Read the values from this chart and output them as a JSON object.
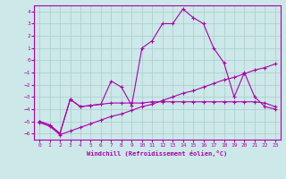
{
  "title": "",
  "xlabel": "Windchill (Refroidissement éolien,°C)",
  "ylabel": "",
  "xlim": [
    -0.5,
    23.5
  ],
  "ylim": [
    -6.5,
    4.5
  ],
  "xticks": [
    0,
    1,
    2,
    3,
    4,
    5,
    6,
    7,
    8,
    9,
    10,
    11,
    12,
    13,
    14,
    15,
    16,
    17,
    18,
    19,
    20,
    21,
    22,
    23
  ],
  "yticks": [
    -6,
    -5,
    -4,
    -3,
    -2,
    -1,
    0,
    1,
    2,
    3,
    4
  ],
  "bg_color": "#cce8e8",
  "grid_color": "#aacccc",
  "line_color": "#aa00aa",
  "line1_x": [
    0,
    1,
    2,
    3,
    4,
    5,
    6,
    7,
    8,
    9,
    10,
    11,
    12,
    13,
    14,
    15,
    16,
    17,
    18,
    19,
    20,
    21,
    22,
    23
  ],
  "line1_y": [
    -5.0,
    -5.3,
    -6.0,
    -3.2,
    -3.8,
    -3.7,
    -3.6,
    -3.5,
    -3.5,
    -3.5,
    -3.5,
    -3.4,
    -3.4,
    -3.4,
    -3.4,
    -3.4,
    -3.4,
    -3.4,
    -3.4,
    -3.4,
    -3.4,
    -3.4,
    -3.5,
    -3.8
  ],
  "line2_x": [
    0,
    1,
    2,
    3,
    4,
    5,
    6,
    7,
    8,
    9,
    10,
    11,
    12,
    13,
    14,
    15,
    16,
    17,
    18,
    19,
    20,
    21,
    22,
    23
  ],
  "line2_y": [
    -5.0,
    -5.3,
    -6.0,
    -3.2,
    -3.8,
    -3.7,
    -3.6,
    -1.7,
    -2.2,
    -3.7,
    1.0,
    1.6,
    3.0,
    3.0,
    4.2,
    3.5,
    3.0,
    1.0,
    -0.2,
    -3.0,
    -1.0,
    -3.0,
    -3.8,
    -4.0
  ],
  "line3_x": [
    0,
    1,
    2,
    3,
    4,
    5,
    6,
    7,
    8,
    9,
    10,
    11,
    12,
    13,
    14,
    15,
    16,
    17,
    18,
    19,
    20,
    21,
    22,
    23
  ],
  "line3_y": [
    -5.1,
    -5.4,
    -6.1,
    -5.8,
    -5.5,
    -5.2,
    -4.9,
    -4.6,
    -4.4,
    -4.1,
    -3.8,
    -3.6,
    -3.3,
    -3.0,
    -2.7,
    -2.5,
    -2.2,
    -1.9,
    -1.6,
    -1.4,
    -1.1,
    -0.8,
    -0.6,
    -0.3
  ]
}
